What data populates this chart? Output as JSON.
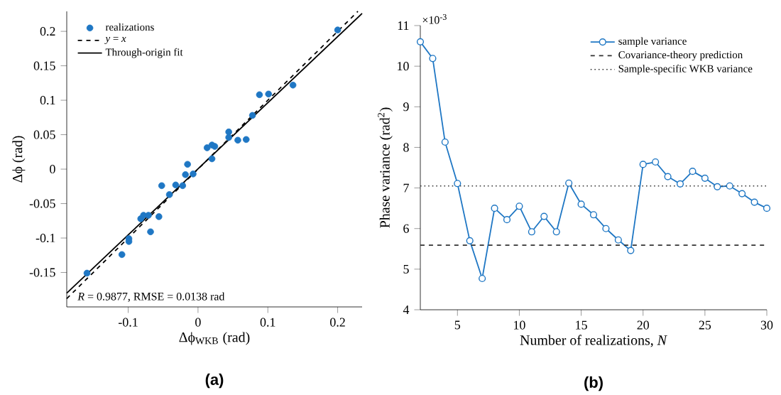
{
  "chart_data": [
    {
      "type": "scatter",
      "title": "(a)",
      "xlabel": "Δϕ$_{WKB}$ (rad)",
      "ylabel": "Δϕ (rad)",
      "annotations": [
        "*R* = 0.9877, RMSE = 0.0138 rad"
      ],
      "xlim": [
        -0.188,
        0.235
      ],
      "ylim": [
        -0.2,
        0.229
      ],
      "xticks": [
        -0.1,
        0,
        0.1,
        0.2
      ],
      "yticks": [
        -0.15,
        -0.1,
        -0.05,
        0,
        0.05,
        0.1,
        0.15,
        0.2
      ],
      "legend": "top left",
      "grid": false,
      "marker": "circle",
      "series": [
        {
          "name": "realizations",
          "type": "scatter",
          "color": "#1f77c4",
          "x": [
            -0.159,
            -0.109,
            -0.099,
            -0.099,
            -0.082,
            -0.078,
            -0.071,
            -0.068,
            -0.056,
            -0.052,
            -0.041,
            -0.032,
            -0.022,
            -0.018,
            -0.015,
            -0.007,
            0.013,
            0.02,
            0.024,
            0.02,
            0.044,
            0.044,
            0.057,
            0.069,
            0.078,
            0.088,
            0.101,
            0.136,
            0.2
          ],
          "values": [
            -0.151,
            -0.124,
            -0.105,
            -0.101,
            -0.072,
            -0.067,
            -0.067,
            -0.091,
            -0.069,
            -0.024,
            -0.037,
            -0.023,
            -0.024,
            -0.008,
            0.007,
            -0.007,
            0.031,
            0.035,
            0.033,
            0.015,
            0.054,
            0.046,
            0.042,
            0.043,
            0.078,
            0.108,
            0.109,
            0.122,
            0.202
          ]
        },
        {
          "name": "*y* = *x*",
          "type": "line",
          "marker": "none",
          "line_style": "dashed",
          "color": "#000000",
          "x": [
            -0.188,
            0.229
          ],
          "values": [
            -0.188,
            0.229
          ]
        },
        {
          "name": "Through-origin fit",
          "type": "line",
          "marker": "none",
          "line_style": "solid",
          "color": "#000000",
          "x": [
            -0.188,
            0.235
          ],
          "values": [
            -0.18,
            0.226
          ]
        }
      ]
    },
    {
      "type": "line",
      "title": "(b)",
      "xlabel": "Number of realizations, *N*",
      "ylabel": "Phase variance (rad$^{2}$)",
      "annotations": [
        "×10$^{-3}$"
      ],
      "xlim": [
        2,
        30
      ],
      "ylim": [
        4,
        11
      ],
      "xticks": [
        5,
        10,
        15,
        20,
        25,
        30
      ],
      "yticks": [
        4,
        5,
        6,
        7,
        8,
        9,
        10,
        11
      ],
      "legend": "top right",
      "grid": false,
      "marker": "circle",
      "line_style": "solid",
      "series": [
        {
          "name": "sample variance",
          "color": "#1f77c4",
          "x": [
            2,
            3,
            4,
            5,
            6,
            7,
            8,
            9,
            10,
            11,
            12,
            13,
            14,
            15,
            16,
            17,
            18,
            19,
            20,
            21,
            22,
            23,
            24,
            25,
            26,
            27,
            28,
            29,
            30
          ],
          "values": [
            10.6,
            10.19,
            8.13,
            7.11,
            5.7,
            4.77,
            6.5,
            6.22,
            6.55,
            5.92,
            6.3,
            5.92,
            7.12,
            6.6,
            6.34,
            6.0,
            5.72,
            5.46,
            7.58,
            7.64,
            7.28,
            7.1,
            7.41,
            7.24,
            7.03,
            7.05,
            6.86,
            6.65,
            6.5
          ]
        }
      ],
      "ref_lines": [
        {
          "axis": "y",
          "value": 5.59,
          "label": "Covariance-theory prediction",
          "line_style": "dashed",
          "color": "#333333"
        },
        {
          "axis": "y",
          "value": 7.05,
          "label": "Sample-specific WKB variance",
          "line_style": "dotted",
          "color": "#333333"
        }
      ]
    }
  ]
}
